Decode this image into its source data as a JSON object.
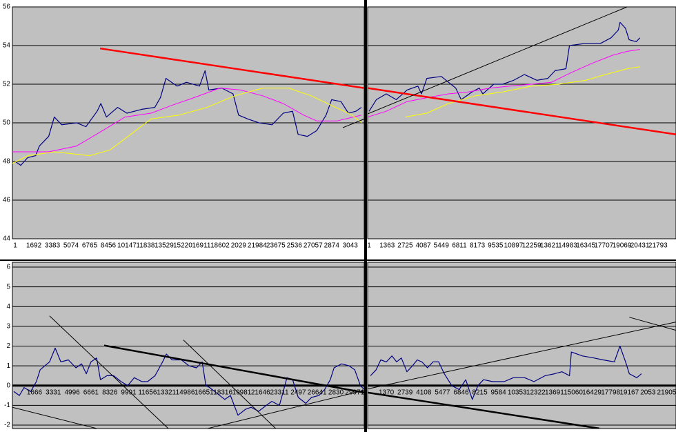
{
  "chart_data": [
    {
      "type": "line",
      "xlim": [
        -0.15,
        18.75
      ],
      "ylim": [
        44,
        56
      ],
      "yticks": [
        44,
        46,
        48,
        50,
        52,
        54,
        56
      ],
      "show_ytick_labels": true,
      "xaxis_cross": 44,
      "grid": true,
      "categories": [
        "1",
        "1692",
        "3383",
        "5074",
        "6765",
        "8456",
        "10147",
        "11838",
        "13529",
        "15220",
        "16911",
        "18602",
        "2029",
        "21984",
        "23675",
        "2536",
        "27057",
        "2874",
        "3043"
      ],
      "series": [
        {
          "color": "#000080",
          "width": 1.2,
          "x": [
            0,
            0.3,
            0.67,
            1.1,
            1.3,
            1.8,
            2.1,
            2.5,
            3.3,
            3.8,
            4.4,
            4.6,
            4.9,
            5.5,
            6,
            6.8,
            7.5,
            7.8,
            8.1,
            8.7,
            9.2,
            9.9,
            10.2,
            10.4,
            11.1,
            11.7,
            12,
            12.5,
            13.1,
            13.8,
            14.4,
            14.9,
            15.2,
            15.7,
            16.2,
            16.7,
            17,
            17.5,
            17.9,
            18.3,
            18.6
          ],
          "values": [
            48,
            47.8,
            48.2,
            48.3,
            48.8,
            49.3,
            50.3,
            49.9,
            50,
            49.8,
            50.6,
            51,
            50.3,
            50.8,
            50.5,
            50.7,
            50.8,
            51.3,
            52.3,
            51.9,
            52.1,
            51.9,
            52.7,
            51.7,
            51.8,
            51.5,
            50.4,
            50.2,
            50,
            49.9,
            50.5,
            50.6,
            49.4,
            49.3,
            49.6,
            50.4,
            51.2,
            51.1,
            50.5,
            50.6,
            50.8
          ]
        },
        {
          "color": "#ff00ff",
          "width": 1,
          "x": [
            -0.15,
            1.8,
            3.3,
            4.7,
            5.9,
            7.3,
            8.4,
            9.6,
            11,
            12.1,
            13.3,
            14.4,
            15.5,
            16.2,
            17.3,
            18.6
          ],
          "values": [
            48.5,
            48.5,
            48.8,
            49.6,
            50.3,
            50.5,
            50.9,
            51.3,
            51.8,
            51.7,
            51.4,
            51,
            50.4,
            50.1,
            50.1,
            50.4
          ]
        },
        {
          "color": "#ffff00",
          "width": 1,
          "x": [
            -0.15,
            0.7,
            2.1,
            4,
            5.1,
            6.2,
            7.3,
            8.8,
            10.3,
            11.8,
            13.3,
            14.7,
            15.9,
            17,
            18.1,
            18.6
          ],
          "values": [
            47.9,
            48.3,
            48.5,
            48.3,
            48.6,
            49.4,
            50.2,
            50.4,
            50.8,
            51.4,
            51.8,
            51.8,
            51.4,
            50.9,
            50.4,
            50
          ]
        },
        {
          "color": "#ff0000",
          "width": 2.5,
          "x": [
            4.56,
            18.75
          ],
          "values": [
            53.85,
            51.8
          ]
        },
        {
          "color": "#000000",
          "width": 1,
          "x": [
            17.6,
            18.75
          ],
          "values": [
            49.75,
            50.2
          ]
        }
      ]
    },
    {
      "type": "line",
      "xlim": [
        -0.08,
        17
      ],
      "ylim": [
        44,
        56
      ],
      "yticks": [
        44,
        46,
        48,
        50,
        52,
        54,
        56
      ],
      "show_ytick_labels": false,
      "xaxis_cross": 44,
      "grid": true,
      "categories": [
        "1",
        "1363",
        "2725",
        "4087",
        "5449",
        "6811",
        "8173",
        "9535",
        "10897",
        "12259",
        "13621",
        "14983",
        "16345",
        "17707",
        "19069",
        "20431",
        "21793"
      ],
      "series": [
        {
          "color": "#000080",
          "width": 1.2,
          "x": [
            0,
            0.4,
            0.95,
            1.5,
            2.1,
            2.7,
            2.9,
            3.2,
            4,
            4.8,
            5.1,
            5.7,
            6.1,
            6.3,
            6.9,
            7.4,
            8,
            8.6,
            9.3,
            9.9,
            10.3,
            10.9,
            11.1,
            11.9,
            12.8,
            13.4,
            13.8,
            13.9,
            14.2,
            14.4,
            14.8,
            15
          ],
          "values": [
            50.6,
            51.2,
            51.5,
            51.2,
            51.7,
            51.9,
            51.5,
            52.3,
            52.4,
            51.8,
            51.2,
            51.6,
            51.8,
            51.5,
            52,
            52,
            52.2,
            52.5,
            52.2,
            52.3,
            52.7,
            52.8,
            54,
            54.1,
            54.1,
            54.4,
            54.8,
            55.2,
            54.9,
            54.3,
            54.2,
            54.4
          ]
        },
        {
          "color": "#ff00ff",
          "width": 1,
          "x": [
            -0.08,
            0.95,
            2.1,
            3.2,
            4.4,
            5.5,
            6.7,
            7.8,
            9,
            10.1,
            11.2,
            12.4,
            13.5,
            14.3,
            15
          ],
          "values": [
            50.3,
            50.6,
            51.1,
            51.3,
            51.5,
            51.6,
            51.8,
            51.9,
            52,
            52.1,
            52.6,
            53.1,
            53.5,
            53.7,
            53.8
          ]
        },
        {
          "color": "#ffff00",
          "width": 1,
          "x": [
            2,
            3.2,
            4.4,
            5.9,
            7.4,
            9,
            10.5,
            12,
            13.1,
            14.3,
            15
          ],
          "values": [
            50.3,
            50.5,
            51,
            51.4,
            51.6,
            51.9,
            52,
            52.2,
            52.5,
            52.8,
            52.9
          ]
        },
        {
          "color": "#ff0000",
          "width": 2.5,
          "x": [
            -0.08,
            17
          ],
          "values": [
            51.8,
            49.4
          ]
        },
        {
          "color": "#000000",
          "width": 1,
          "x": [
            -0.08,
            14.29
          ],
          "values": [
            50.46,
            56
          ]
        }
      ]
    },
    {
      "type": "line",
      "xlim": [
        -1.17,
        17.5
      ],
      "ylim": [
        -2,
        6
      ],
      "yticks": [
        -2,
        -1,
        0,
        1,
        2,
        3,
        4,
        5,
        6
      ],
      "show_ytick_labels": true,
      "xaxis_cross": 0,
      "grid": true,
      "categories": [
        "1666",
        "3331",
        "4996",
        "6661",
        "8326",
        "9991",
        "11656",
        "13321",
        "14986",
        "16651",
        "18316",
        "19981",
        "21646",
        "23311",
        "2497",
        "26641",
        "2830",
        "29971"
      ],
      "series": [
        {
          "color": "#000080",
          "width": 1.2,
          "x": [
            -1.1,
            -0.8,
            -0.55,
            -0.2,
            0.1,
            0.3,
            0.55,
            0.8,
            1.1,
            1.4,
            1.8,
            2.2,
            2.5,
            2.75,
            3,
            3.3,
            3.5,
            3.85,
            4.2,
            4.6,
            4.95,
            5.3,
            5.7,
            6,
            6.4,
            6.8,
            7,
            7.3,
            7.8,
            8.2,
            8.6,
            8.9,
            9.1,
            9.3,
            9.7,
            10.1,
            10.4,
            10.8,
            11.2,
            11.5,
            11.9,
            12.3,
            12.6,
            13,
            13.4,
            13.7,
            14,
            14.4,
            14.7,
            15.1,
            15.4,
            15.7,
            15.9,
            16.3,
            16.7,
            17,
            17.3,
            17.5
          ],
          "values": [
            -0.3,
            -0.5,
            -0.1,
            -0.3,
            0.2,
            0.8,
            1,
            1.2,
            1.9,
            1.2,
            1.3,
            0.9,
            1.1,
            0.6,
            1.2,
            1.4,
            0.3,
            0.5,
            0.5,
            0.2,
            0,
            0.4,
            0.2,
            0.2,
            0.5,
            1.2,
            1.6,
            1.3,
            1.3,
            1,
            0.9,
            1.2,
            0,
            -0.1,
            -0.4,
            -0.7,
            -0.5,
            -1.5,
            -1.2,
            -1.1,
            -1.3,
            -1,
            -0.8,
            -1,
            0.4,
            0.3,
            -0.6,
            -0.9,
            -0.6,
            -0.5,
            -0.2,
            0.3,
            0.9,
            1.1,
            1,
            0.8,
            0,
            -0.2
          ]
        },
        {
          "color": "#000000",
          "width": 1,
          "x": [
            0.8,
            7.1
          ],
          "values": [
            3.53,
            -2.17
          ]
        },
        {
          "color": "#000000",
          "width": 1,
          "x": [
            7.9,
            12.8
          ],
          "values": [
            2.31,
            -2.17
          ]
        },
        {
          "color": "#000000",
          "width": 1,
          "x": [
            -1.17,
            3.3
          ],
          "values": [
            -1.1,
            -2.17
          ]
        },
        {
          "color": "#000000",
          "width": 1,
          "x": [
            9.2,
            17.5
          ],
          "values": [
            -2.17,
            -0.24
          ]
        },
        {
          "color": "#000000",
          "width": 2.5,
          "x": [
            3.7,
            17.5
          ],
          "values": [
            2.03,
            -0.35
          ]
        }
      ]
    },
    {
      "type": "line",
      "xlim": [
        -1,
        15.5
      ],
      "ylim": [
        -2,
        6
      ],
      "yticks": [
        -2,
        -1,
        0,
        1,
        2,
        3,
        4,
        5,
        6
      ],
      "show_ytick_labels": false,
      "xaxis_cross": 0,
      "grid": true,
      "categories": [
        "1370",
        "2739",
        "4108",
        "5477",
        "6846",
        "8215",
        "9584",
        "10353",
        "12322",
        "13691",
        "15060",
        "16429",
        "17798",
        "19167",
        "2053",
        "21905"
      ],
      "series": [
        {
          "color": "#000080",
          "width": 1.2,
          "x": [
            -0.85,
            -0.55,
            -0.3,
            0,
            0.3,
            0.55,
            0.8,
            1.1,
            1.4,
            1.65,
            1.9,
            2.2,
            2.5,
            2.8,
            3.1,
            3.5,
            3.9,
            4.25,
            4.6,
            4.9,
            5.2,
            5.7,
            6.3,
            6.8,
            7.4,
            7.9,
            8.5,
            9,
            9.4,
            9.8,
            9.9,
            10.5,
            11.1,
            11.6,
            12.2,
            12.5,
            12.8,
            13,
            13.4,
            13.65
          ],
          "values": [
            0.5,
            0.8,
            1.3,
            1.2,
            1.5,
            1.2,
            1.4,
            0.7,
            1,
            1.3,
            1.2,
            0.9,
            1.2,
            1.2,
            0.6,
            0,
            -0.2,
            0.3,
            -0.7,
            0,
            0.3,
            0.2,
            0.2,
            0.4,
            0.4,
            0.2,
            0.5,
            0.6,
            0.7,
            0.5,
            1.7,
            1.5,
            1.4,
            1.3,
            1.2,
            2,
            1.2,
            0.6,
            0.4,
            0.6
          ]
        },
        {
          "color": "#000000",
          "width": 2.5,
          "x": [
            -1,
            11.4
          ],
          "values": [
            -0.35,
            -2.17
          ]
        },
        {
          "color": "#000000",
          "width": 1,
          "x": [
            -1,
            15.5
          ],
          "values": [
            -0.17,
            3.22
          ]
        },
        {
          "color": "#000000",
          "width": 1,
          "x": [
            13,
            15.5
          ],
          "values": [
            3.46,
            2.8
          ]
        }
      ]
    }
  ]
}
